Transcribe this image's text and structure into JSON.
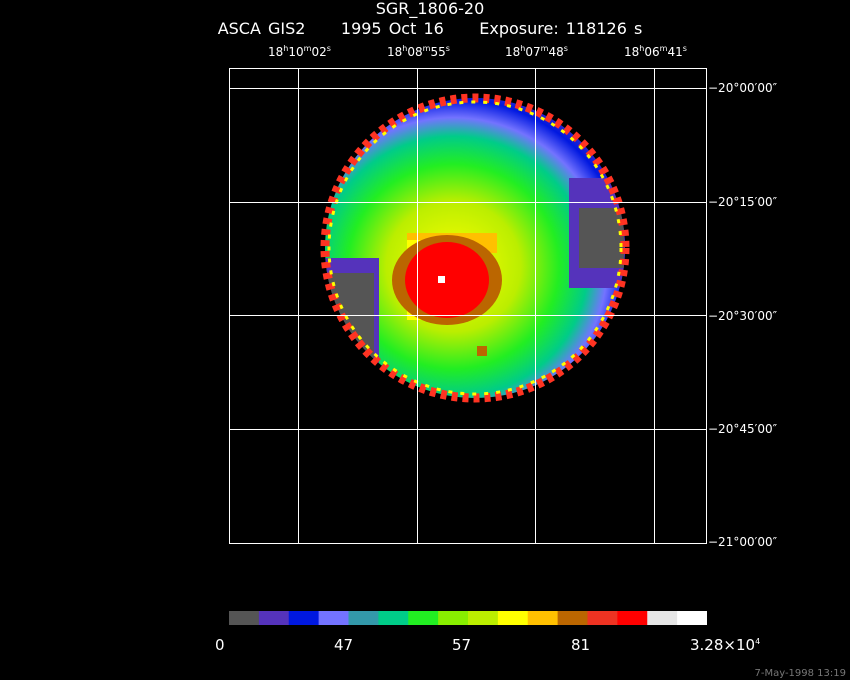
{
  "header": {
    "object": "SGR_1806-20",
    "instrument": "ASCA GIS2",
    "date": "1995 Oct 16",
    "exposure": "Exposure: 118126 s"
  },
  "ra_labels": [
    {
      "h": "18",
      "m": "10",
      "s": "02"
    },
    {
      "h": "18",
      "m": "08",
      "s": "55"
    },
    {
      "h": "18",
      "m": "07",
      "s": "48"
    },
    {
      "h": "18",
      "m": "06",
      "s": "41"
    }
  ],
  "dec_labels": [
    "−20°00′00″",
    "−20°15′00″",
    "−20°30′00″",
    "−20°45′00″",
    "−21°00′00″"
  ],
  "colorbar": {
    "colors": [
      "#555555",
      "#5533bb",
      "#0018e0",
      "#7373ff",
      "#3399aa",
      "#00cc88",
      "#22ee22",
      "#88ee00",
      "#bbee00",
      "#ffff00",
      "#ffc000",
      "#bb6600",
      "#ee3322",
      "#ff0000",
      "#e6e6e6",
      "#ffffff"
    ],
    "labels": [
      "0",
      "47",
      "57",
      "81",
      "3.28×10"
    ],
    "max_exp": "4"
  },
  "timestamp": "7-May-1998 13:19"
}
